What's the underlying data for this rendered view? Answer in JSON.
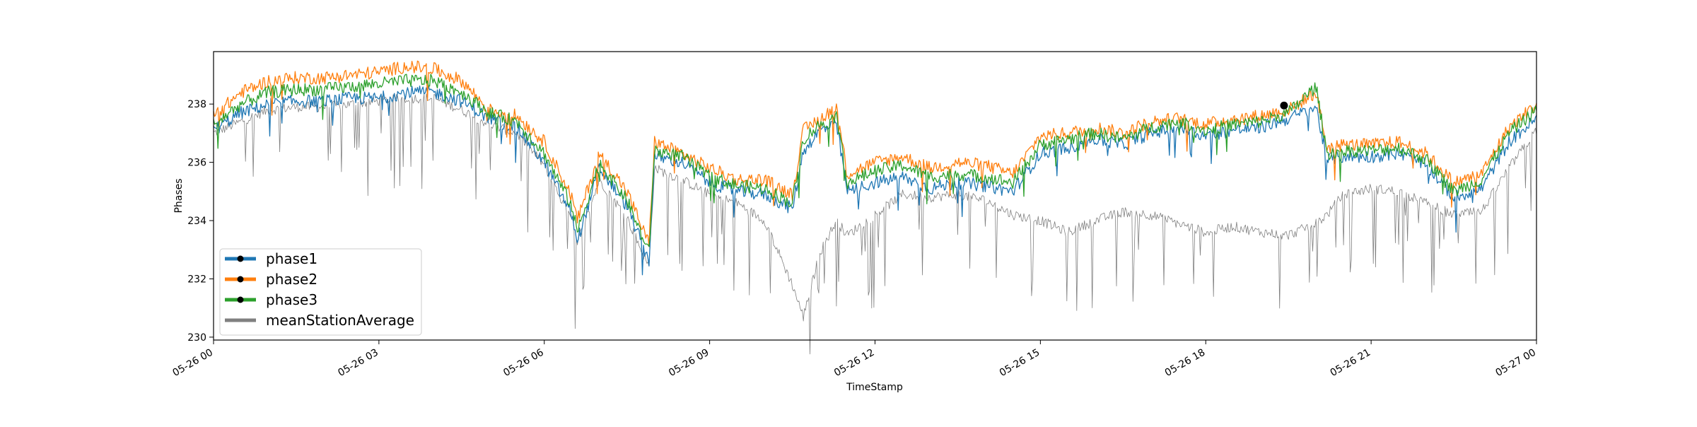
{
  "chart_data": {
    "type": "line",
    "title": "",
    "xlabel": "TimeStamp",
    "ylabel": "Phases",
    "xlim": [
      "05-26 00",
      "05-27 00"
    ],
    "ylim": [
      229.9,
      239.8
    ],
    "grid": false,
    "legend_position": "lower-left",
    "x_ticks": [
      {
        "t": 0,
        "label": "05-26 00"
      },
      {
        "t": 3,
        "label": "05-26 03"
      },
      {
        "t": 6,
        "label": "05-26 06"
      },
      {
        "t": 9,
        "label": "05-26 09"
      },
      {
        "t": 12,
        "label": "05-26 12"
      },
      {
        "t": 15,
        "label": "05-26 15"
      },
      {
        "t": 18,
        "label": "05-26 18"
      },
      {
        "t": 21,
        "label": "05-26 21"
      },
      {
        "t": 24,
        "label": "05-27 00"
      }
    ],
    "y_ticks": [
      {
        "v": 230,
        "label": "230"
      },
      {
        "v": 232,
        "label": "232"
      },
      {
        "v": 234,
        "label": "234"
      },
      {
        "v": 236,
        "label": "236"
      },
      {
        "v": 238,
        "label": "238"
      }
    ],
    "x_hours": [
      0,
      0.5,
      1,
      1.5,
      2,
      2.5,
      3,
      3.5,
      4,
      4.5,
      5,
      5.5,
      6,
      6.5,
      6.6,
      7,
      7.5,
      7.9,
      8,
      8.5,
      9,
      9.5,
      10,
      10.5,
      10.7,
      11,
      11.3,
      11.5,
      12,
      12.5,
      13,
      13.5,
      14,
      14.5,
      15,
      15.5,
      16,
      16.5,
      17,
      17.5,
      18,
      18.5,
      19,
      19.5,
      20,
      20.2,
      20.5,
      21,
      21.5,
      22,
      22.5,
      23,
      23.5,
      24
    ],
    "series": [
      {
        "name": "phase1",
        "color": "#1f77b4",
        "marker": "dot",
        "values": [
          237.1,
          237.7,
          238.0,
          238.1,
          238.1,
          238.2,
          238.2,
          238.4,
          238.4,
          238.1,
          237.5,
          237.2,
          236.0,
          234.2,
          233.3,
          235.8,
          234.5,
          232.6,
          236.2,
          236.0,
          235.3,
          235.0,
          234.9,
          234.4,
          236.4,
          237.1,
          237.3,
          235.0,
          235.3,
          235.5,
          235.1,
          235.3,
          235.2,
          235.0,
          236.3,
          236.5,
          236.8,
          236.6,
          237.0,
          237.2,
          236.9,
          237.1,
          237.2,
          237.5,
          237.9,
          236.1,
          236.2,
          236.2,
          236.3,
          235.9,
          234.8,
          235.1,
          236.7,
          237.5
        ]
      },
      {
        "name": "phase2",
        "color": "#ff7f0e",
        "marker": "dot",
        "values": [
          237.6,
          238.4,
          238.8,
          238.9,
          238.9,
          239.0,
          239.1,
          239.3,
          239.2,
          238.8,
          237.8,
          237.6,
          236.7,
          234.8,
          234.0,
          236.3,
          235.0,
          233.2,
          236.7,
          236.3,
          235.8,
          235.4,
          235.4,
          234.9,
          237.1,
          237.5,
          237.9,
          235.6,
          236.0,
          236.2,
          235.8,
          236.0,
          235.9,
          235.6,
          236.9,
          237.0,
          237.2,
          237.0,
          237.4,
          237.5,
          237.3,
          237.5,
          237.6,
          237.8,
          238.4,
          236.5,
          236.6,
          236.6,
          236.7,
          236.3,
          235.3,
          235.6,
          237.2,
          238.0
        ]
      },
      {
        "name": "phase3",
        "color": "#2ca02c",
        "marker": "dot",
        "values": [
          237.3,
          238.0,
          238.4,
          238.5,
          238.5,
          238.6,
          238.7,
          238.8,
          238.8,
          238.4,
          237.7,
          237.4,
          236.3,
          234.5,
          233.6,
          236.0,
          234.7,
          232.9,
          236.4,
          236.2,
          235.5,
          235.2,
          235.1,
          234.6,
          236.8,
          237.3,
          237.6,
          235.3,
          235.7,
          235.9,
          235.5,
          235.6,
          235.5,
          235.3,
          236.6,
          236.8,
          237.0,
          236.8,
          237.2,
          237.4,
          237.1,
          237.3,
          237.4,
          237.7,
          238.6,
          236.3,
          236.4,
          236.4,
          236.5,
          236.1,
          235.0,
          235.4,
          237.0,
          237.8
        ]
      },
      {
        "name": "meanStationAverage",
        "color": "#808080",
        "marker": "none",
        "values": [
          237.0,
          237.4,
          237.8,
          237.9,
          237.9,
          238.0,
          238.1,
          238.2,
          238.2,
          237.8,
          237.3,
          237.0,
          235.9,
          234.0,
          233.2,
          235.4,
          234.1,
          232.4,
          235.8,
          235.4,
          234.9,
          234.6,
          234.0,
          231.8,
          230.7,
          232.9,
          234.0,
          233.5,
          234.2,
          234.9,
          234.8,
          234.9,
          234.7,
          234.2,
          234.0,
          233.6,
          234.0,
          234.3,
          234.2,
          233.9,
          233.6,
          233.8,
          233.6,
          233.5,
          233.9,
          234.2,
          234.9,
          235.1,
          235.0,
          234.6,
          234.2,
          234.3,
          235.8,
          237.1
        ]
      }
    ],
    "highlight_point": {
      "t": 19.42,
      "v": 237.95
    }
  }
}
